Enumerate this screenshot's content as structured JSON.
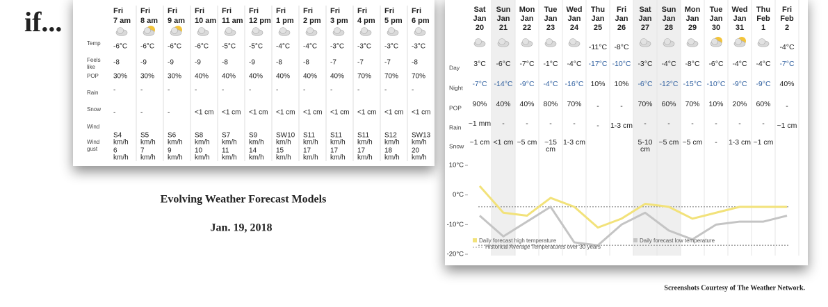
{
  "intro": "if...",
  "caption": "Evolving Weather Forecast Models",
  "date": "Jan. 19, 2018",
  "credit": "Screenshots Courtesy of The Weather Network.",
  "hourly": {
    "columns": [
      [
        "Fri",
        "7 am"
      ],
      [
        "Fri",
        "8 am"
      ],
      [
        "Fri",
        "9 am"
      ],
      [
        "Fri",
        "10 am"
      ],
      [
        "Fri",
        "11 am"
      ],
      [
        "Fri",
        "12 pm"
      ],
      [
        "Fri",
        "1 pm"
      ],
      [
        "Fri",
        "2 pm"
      ],
      [
        "Fri",
        "3 pm"
      ],
      [
        "Fri",
        "4 pm"
      ],
      [
        "Fri",
        "5 pm"
      ],
      [
        "Fri",
        "6 pm"
      ]
    ],
    "rows": [
      {
        "label": [
          "Temp"
        ],
        "values": [
          "-6°C",
          "-6°C",
          "-6°C",
          "-6°C",
          "-5°C",
          "-5°C",
          "-4°C",
          "-4°C",
          "-3°C",
          "-3°C",
          "-3°C",
          "-3°C"
        ]
      },
      {
        "label": [
          "Feels",
          "like"
        ],
        "values": [
          "-8",
          "-9",
          "-9",
          "-9",
          "-8",
          "-9",
          "-8",
          "-8",
          "-7",
          "-7",
          "-7",
          "-8"
        ]
      },
      {
        "label": [
          "POP"
        ],
        "values": [
          "30%",
          "30%",
          "30%",
          "40%",
          "40%",
          "40%",
          "40%",
          "40%",
          "40%",
          "70%",
          "70%",
          "70%"
        ]
      },
      {
        "label": [
          "Rain"
        ],
        "values": [
          "-",
          "-",
          "-",
          "-",
          "-",
          "-",
          "-",
          "-",
          "-",
          "-",
          "-",
          "-"
        ]
      },
      {
        "label": [
          "Snow"
        ],
        "values": [
          "-",
          "-",
          "-",
          "<1 cm",
          "<1 cm",
          "<1 cm",
          "<1 cm",
          "<1 cm",
          "<1 cm",
          "<1 cm",
          "<1 cm",
          "<1 cm"
        ]
      },
      {
        "label": [
          "Wind"
        ],
        "values": [
          [
            "S4",
            "km/h"
          ],
          [
            "S5",
            "km/h"
          ],
          [
            "S6",
            "km/h"
          ],
          [
            "S8",
            "km/h"
          ],
          [
            "S7",
            "km/h"
          ],
          [
            "S9",
            "km/h"
          ],
          [
            "SW10",
            "km/h"
          ],
          [
            "S11",
            "km/h"
          ],
          [
            "S11",
            "km/h"
          ],
          [
            "S11",
            "km/h"
          ],
          [
            "S12",
            "km/h"
          ],
          [
            "SW13",
            "km/h"
          ]
        ]
      },
      {
        "label": [
          "Wind",
          "gust"
        ],
        "values": [
          [
            "6",
            "km/h"
          ],
          [
            "7",
            "km/h"
          ],
          [
            "9",
            "km/h"
          ],
          [
            "10",
            "km/h"
          ],
          [
            "11",
            "km/h"
          ],
          [
            "14",
            "km/h"
          ],
          [
            "15",
            "km/h"
          ],
          [
            "17",
            "km/h"
          ],
          [
            "17",
            "km/h"
          ],
          [
            "17",
            "km/h"
          ],
          [
            "18",
            "km/h"
          ],
          [
            "20",
            "km/h"
          ]
        ]
      }
    ]
  },
  "daily": {
    "columns": [
      [
        "Sat",
        "Jan",
        "20"
      ],
      [
        "Sun",
        "Jan",
        "21"
      ],
      [
        "Mon",
        "Jan",
        "22"
      ],
      [
        "Tue",
        "Jan",
        "23"
      ],
      [
        "Wed",
        "Jan",
        "24"
      ],
      [
        "Thu",
        "Jan",
        "25"
      ],
      [
        "Fri",
        "Jan",
        "26"
      ],
      [
        "Sat",
        "Jan",
        "27"
      ],
      [
        "Sun",
        "Jan",
        "28"
      ],
      [
        "Mon",
        "Jan",
        "29"
      ],
      [
        "Tue",
        "Jan",
        "30"
      ],
      [
        "Wed",
        "Jan",
        "31"
      ],
      [
        "Thu",
        "Feb",
        "1"
      ],
      [
        "Fri",
        "Feb",
        "2"
      ]
    ],
    "top": [
      null,
      null,
      null,
      null,
      null,
      "-11°C",
      "-8°C",
      null,
      null,
      null,
      null,
      null,
      null,
      "-4°C"
    ],
    "rows": [
      {
        "label": "Day",
        "values": [
          "3°C",
          "-6°C",
          "-7°C",
          "-1°C",
          "-4°C",
          "-17°C",
          "-10°C",
          "-3°C",
          "-4°C",
          "-8°C",
          "-6°C",
          "-4°C",
          "-4°C",
          "-7°C"
        ]
      },
      {
        "label": "Night",
        "values": [
          "-7°C",
          "-14°C",
          "-9°C",
          "-4°C",
          "-16°C",
          "10%",
          "10%",
          "-6°C",
          "-12°C",
          "-15°C",
          "-10°C",
          "-9°C",
          "-9°C",
          "40%"
        ]
      },
      {
        "label": "POP",
        "values": [
          "90%",
          "40%",
          "40%",
          "80%",
          "70%",
          "-",
          "-",
          "70%",
          "60%",
          "70%",
          "10%",
          "20%",
          "60%",
          "-"
        ]
      },
      {
        "label": "Rain",
        "values": [
          "~1 mm",
          "-",
          "-",
          "-",
          "-",
          "-",
          "1-3 cm",
          "-",
          "-",
          "-",
          "-",
          "-",
          "-",
          "~1 cm"
        ]
      },
      {
        "label": "Snow",
        "values": [
          "~1 cm",
          "<1 cm",
          "~5 cm",
          [
            "~15",
            "cm"
          ],
          "1-3 cm",
          null,
          null,
          [
            "5-10",
            "cm"
          ],
          "~5 cm",
          "~5 cm",
          "-",
          "1-3 cm",
          "~1 cm",
          null
        ]
      }
    ]
  },
  "chart_data": {
    "type": "line",
    "ylim": [
      -20,
      10
    ],
    "yticks": [
      {
        "value": 10,
        "label": "10°C"
      },
      {
        "value": 0,
        "label": "0°C"
      },
      {
        "value": -10,
        "label": "-10°C"
      },
      {
        "value": -20,
        "label": "-20°C"
      }
    ],
    "series": [
      {
        "name": "Daily forecast high temperature",
        "color": "#f2e27a",
        "values": [
          3,
          -6,
          -7,
          -1,
          -4,
          -11,
          -8,
          -3,
          -4,
          -8,
          -6,
          -4,
          -4,
          -4
        ]
      },
      {
        "name": "Daily forecast low temperature",
        "color": "#c4c4c4",
        "values": [
          -7,
          -14,
          -9,
          -4,
          -16,
          -17,
          -10,
          -6,
          -12,
          -15,
          -10,
          -9,
          -9,
          -7
        ]
      }
    ],
    "reference": {
      "name": "Historical Average Temperatures over 30 years",
      "color": "#999999",
      "values": [
        -4,
        -17
      ]
    }
  }
}
